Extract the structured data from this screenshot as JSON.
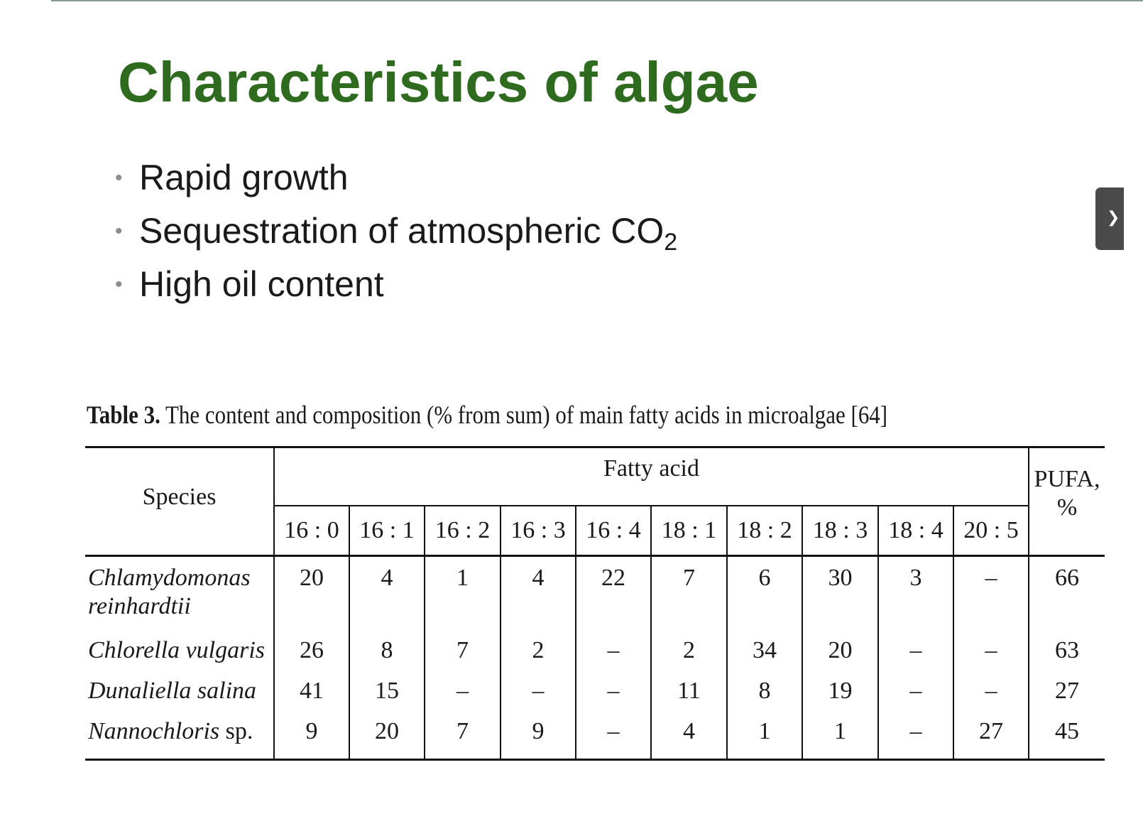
{
  "slide": {
    "title": "Characteristics of algae",
    "bullets": [
      {
        "text": "Rapid growth",
        "sub": ""
      },
      {
        "text": "Sequestration of atmospheric CO",
        "sub": "2"
      },
      {
        "text": "High oil content",
        "sub": ""
      }
    ],
    "bullet_glyph": "•"
  },
  "side_tab": {
    "glyph": "❯"
  },
  "table": {
    "caption_label": "Table 3.",
    "caption_text": "The content and composition (% from sum) of main fatty acids in microalgae [64]",
    "header": {
      "species": "Species",
      "fatty_acid": "Fatty acid",
      "pufa_line1": "PUFA,",
      "pufa_line2": "%",
      "acids": [
        "16 : 0",
        "16 : 1",
        "16 : 2",
        "16 : 3",
        "16 : 4",
        "18 : 1",
        "18 : 2",
        "18 : 3",
        "18 : 4",
        "20 : 5"
      ]
    },
    "rows": [
      {
        "species_line1": "Chlamydomonas",
        "species_line2": "reinhardtii",
        "species_suffix": "",
        "values": [
          "20",
          "4",
          "1",
          "4",
          "22",
          "7",
          "6",
          "30",
          "3",
          "–"
        ],
        "pufa": "66"
      },
      {
        "species_line1": "Chlorella vulgaris",
        "species_line2": "",
        "species_suffix": "",
        "values": [
          "26",
          "8",
          "7",
          "2",
          "–",
          "2",
          "34",
          "20",
          "–",
          "–"
        ],
        "pufa": "63"
      },
      {
        "species_line1": "Dunaliella salina",
        "species_line2": "",
        "species_suffix": "",
        "values": [
          "41",
          "15",
          "–",
          "–",
          "–",
          "11",
          "8",
          "19",
          "–",
          "–"
        ],
        "pufa": "27"
      },
      {
        "species_line1": "Nannochloris",
        "species_line2": "",
        "species_suffix": " sp.",
        "values": [
          "9",
          "20",
          "7",
          "9",
          "–",
          "4",
          "1",
          "1",
          "–",
          "27"
        ],
        "pufa": "45"
      }
    ]
  }
}
